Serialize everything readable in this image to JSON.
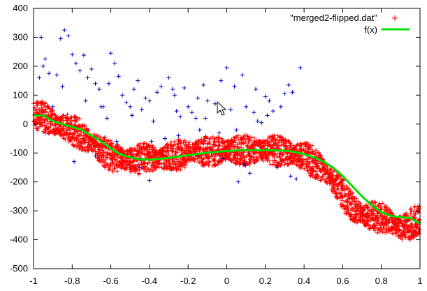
{
  "chart_data": {
    "type": "scatter",
    "title": "",
    "xlabel": "",
    "ylabel": "",
    "xlim": [
      -1,
      1
    ],
    "ylim": [
      -500,
      400
    ],
    "grid": false,
    "legend_position": "top-right",
    "x_ticks": [
      "-1",
      "-0.8",
      "-0.6",
      "-0.4",
      "-0.2",
      "0",
      "0.2",
      "0.4",
      "0.6",
      "0.8",
      "1"
    ],
    "y_ticks": [
      "400",
      "300",
      "200",
      "100",
      "0",
      "-100",
      "-200",
      "-300",
      "-400",
      "-500"
    ],
    "series": [
      {
        "name": "\"merged2-flipped.dat\"",
        "kind": "points",
        "marker": "plus",
        "color": "#ff0000",
        "description_of_data": "dense band of points around f(x) with spread of about +/-50",
        "x": [
          -1.0,
          -0.98,
          -0.96,
          -0.94,
          -0.92,
          -0.9,
          -0.88,
          -0.86,
          -0.84,
          -0.82,
          -0.8,
          -0.78,
          -0.76,
          -0.74,
          -0.72,
          -0.7,
          -0.68,
          -0.66,
          -0.64,
          -0.62,
          -0.6,
          -0.58,
          -0.56,
          -0.54,
          -0.52,
          -0.5,
          -0.48,
          -0.46,
          -0.44,
          -0.42,
          -0.4,
          -0.38,
          -0.36,
          -0.34,
          -0.32,
          -0.3,
          -0.28,
          -0.26,
          -0.24,
          -0.22,
          -0.2,
          -0.18,
          -0.16,
          -0.14,
          -0.12,
          -0.1,
          -0.08,
          -0.06,
          -0.04,
          -0.02,
          0.0,
          0.02,
          0.04,
          0.06,
          0.08,
          0.1,
          0.12,
          0.14,
          0.16,
          0.18,
          0.2,
          0.22,
          0.24,
          0.26,
          0.28,
          0.3,
          0.32,
          0.34,
          0.36,
          0.38,
          0.4,
          0.42,
          0.44,
          0.46,
          0.48,
          0.5,
          0.52,
          0.54,
          0.56,
          0.58,
          0.6,
          0.62,
          0.64,
          0.66,
          0.68,
          0.7,
          0.72,
          0.74,
          0.76,
          0.78,
          0.8,
          0.82,
          0.84,
          0.86,
          0.88,
          0.9,
          0.92,
          0.94,
          0.96,
          0.98,
          1.0
        ],
        "y_center": [
          30,
          32,
          28,
          22,
          15,
          5,
          -2,
          -5,
          -10,
          -15,
          -20,
          -27,
          -35,
          -45,
          -55,
          -60,
          -72,
          -85,
          -95,
          -103,
          -110,
          -115,
          -118,
          -122,
          -124,
          -125,
          -124,
          -122,
          -120,
          -118,
          -117,
          -118,
          -120,
          -118,
          -115,
          -112,
          -110,
          -108,
          -106,
          -104,
          -102,
          -100,
          -98,
          -96,
          -95,
          -94,
          -93,
          -92,
          -91,
          -91,
          -90,
          -90,
          -90,
          -90,
          -90,
          -90,
          -90,
          -90,
          -90,
          -90,
          -90,
          -91,
          -92,
          -93,
          -95,
          -97,
          -100,
          -103,
          -106,
          -110,
          -115,
          -120,
          -128,
          -137,
          -147,
          -160,
          -175,
          -190,
          -205,
          -220,
          -240,
          -260,
          -278,
          -293,
          -303,
          -310,
          -315,
          -318,
          -320,
          -322,
          -325,
          -328,
          -335,
          -345,
          -355,
          -360,
          -360,
          -350,
          -340,
          -335,
          -330
        ],
        "spread": 55
      },
      {
        "name": "",
        "kind": "points",
        "marker": "plus",
        "color": "#0000c8",
        "points": [
          [
            -0.96,
            300
          ],
          [
            -0.94,
            225
          ],
          [
            -0.95,
            200
          ],
          [
            -0.92,
            175
          ],
          [
            -0.9,
            60
          ],
          [
            -0.86,
            295
          ],
          [
            -0.84,
            325
          ],
          [
            -0.82,
            305
          ],
          [
            -0.8,
            240
          ],
          [
            -0.78,
            210
          ],
          [
            -0.76,
            185
          ],
          [
            -0.74,
            238
          ],
          [
            -0.72,
            160
          ],
          [
            -0.7,
            190
          ],
          [
            -0.68,
            140
          ],
          [
            -0.66,
            120
          ],
          [
            -0.64,
            60
          ],
          [
            -0.62,
            20
          ],
          [
            -0.6,
            245
          ],
          [
            -0.58,
            210
          ],
          [
            -0.56,
            165
          ],
          [
            -0.54,
            100
          ],
          [
            -0.52,
            75
          ],
          [
            -0.5,
            60
          ],
          [
            -0.48,
            120
          ],
          [
            -0.46,
            150
          ],
          [
            -0.44,
            50
          ],
          [
            -0.42,
            90
          ],
          [
            -0.4,
            80
          ],
          [
            -0.38,
            10
          ],
          [
            -0.36,
            110
          ],
          [
            -0.34,
            130
          ],
          [
            -0.32,
            -50
          ],
          [
            -0.3,
            160
          ],
          [
            -0.28,
            120
          ],
          [
            -0.26,
            45
          ],
          [
            -0.24,
            25
          ],
          [
            -0.22,
            125
          ],
          [
            -0.2,
            60
          ],
          [
            -0.18,
            40
          ],
          [
            -0.16,
            20
          ],
          [
            -0.14,
            -20
          ],
          [
            -0.12,
            135
          ],
          [
            -0.1,
            80
          ],
          [
            -0.08,
            -100
          ],
          [
            -0.06,
            70
          ],
          [
            -0.04,
            -30
          ],
          [
            -0.02,
            -120
          ],
          [
            0.0,
            195
          ],
          [
            0.02,
            50
          ],
          [
            0.04,
            130
          ],
          [
            0.06,
            -200
          ],
          [
            0.08,
            170
          ],
          [
            0.1,
            60
          ],
          [
            0.12,
            -170
          ],
          [
            0.14,
            40
          ],
          [
            0.16,
            10
          ],
          [
            0.18,
            5
          ],
          [
            0.2,
            95
          ],
          [
            0.22,
            80
          ],
          [
            0.24,
            45
          ],
          [
            0.26,
            -150
          ],
          [
            0.28,
            60
          ],
          [
            0.3,
            105
          ],
          [
            0.32,
            135
          ],
          [
            0.34,
            110
          ],
          [
            0.36,
            -190
          ],
          [
            0.38,
            195
          ],
          [
            -0.97,
            160
          ],
          [
            -0.85,
            130
          ],
          [
            -0.73,
            80
          ],
          [
            -0.61,
            140
          ],
          [
            -0.49,
            30
          ],
          [
            -0.39,
            -60
          ],
          [
            -0.27,
            100
          ],
          [
            -0.15,
            90
          ],
          [
            -0.03,
            150
          ],
          [
            0.09,
            -140
          ],
          [
            0.21,
            30
          ],
          [
            0.33,
            -180
          ],
          [
            -0.88,
            170
          ],
          [
            -0.65,
            60
          ],
          [
            -0.45,
            -150
          ],
          [
            -0.4,
            -195
          ],
          [
            -0.25,
            -40
          ],
          [
            -0.11,
            20
          ],
          [
            0.05,
            -20
          ],
          [
            0.15,
            120
          ],
          [
            -0.79,
            -130
          ],
          [
            -0.68,
            -110
          ],
          [
            -0.57,
            -60
          ]
        ]
      },
      {
        "name": "f(x)",
        "kind": "line",
        "color": "#00e000",
        "x": [
          -1.0,
          -0.95,
          -0.9,
          -0.85,
          -0.8,
          -0.75,
          -0.7,
          -0.65,
          -0.6,
          -0.55,
          -0.5,
          -0.45,
          -0.4,
          -0.35,
          -0.3,
          -0.25,
          -0.2,
          -0.15,
          -0.1,
          -0.05,
          0.0,
          0.05,
          0.1,
          0.15,
          0.2,
          0.25,
          0.3,
          0.35,
          0.4,
          0.45,
          0.5,
          0.55,
          0.6,
          0.65,
          0.7,
          0.75,
          0.8,
          0.85,
          0.9,
          0.95,
          1.0
        ],
        "y": [
          30,
          30,
          10,
          0,
          -10,
          -20,
          -40,
          -60,
          -85,
          -105,
          -115,
          -122,
          -123,
          -120,
          -117,
          -112,
          -108,
          -103,
          -99,
          -96,
          -93,
          -91,
          -90,
          -90,
          -90,
          -91,
          -92,
          -96,
          -104,
          -115,
          -130,
          -150,
          -180,
          -215,
          -250,
          -280,
          -305,
          -318,
          -322,
          -325,
          -345
        ]
      }
    ]
  }
}
